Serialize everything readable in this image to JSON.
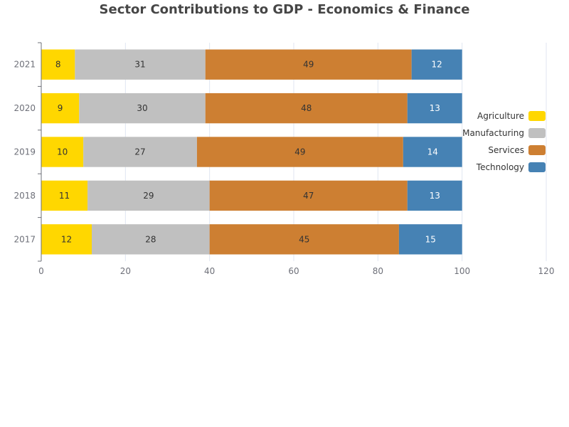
{
  "chart_data": {
    "type": "bar",
    "orientation": "horizontal",
    "stacked": true,
    "title": "Sector Contributions to GDP - Economics & Finance",
    "categories": [
      "2017",
      "2018",
      "2019",
      "2020",
      "2021"
    ],
    "series": [
      {
        "name": "Agriculture",
        "color": "#FFD700",
        "label_color": "#333333",
        "values": [
          12,
          11,
          10,
          9,
          8
        ]
      },
      {
        "name": "Manufacturing",
        "color": "#C0C0C0",
        "label_color": "#333333",
        "values": [
          28,
          29,
          27,
          30,
          31
        ]
      },
      {
        "name": "Services",
        "color": "#CD7F32",
        "label_color": "#333333",
        "values": [
          45,
          47,
          49,
          48,
          49
        ]
      },
      {
        "name": "Technology",
        "color": "#4682B4",
        "label_color": "#ffffff",
        "values": [
          15,
          13,
          14,
          13,
          12
        ]
      }
    ],
    "xlim": [
      0,
      120
    ],
    "xticks": [
      0,
      20,
      40,
      60,
      80,
      100,
      120
    ],
    "xlabel": "",
    "ylabel": "",
    "grid": true,
    "legend_position": "right"
  }
}
